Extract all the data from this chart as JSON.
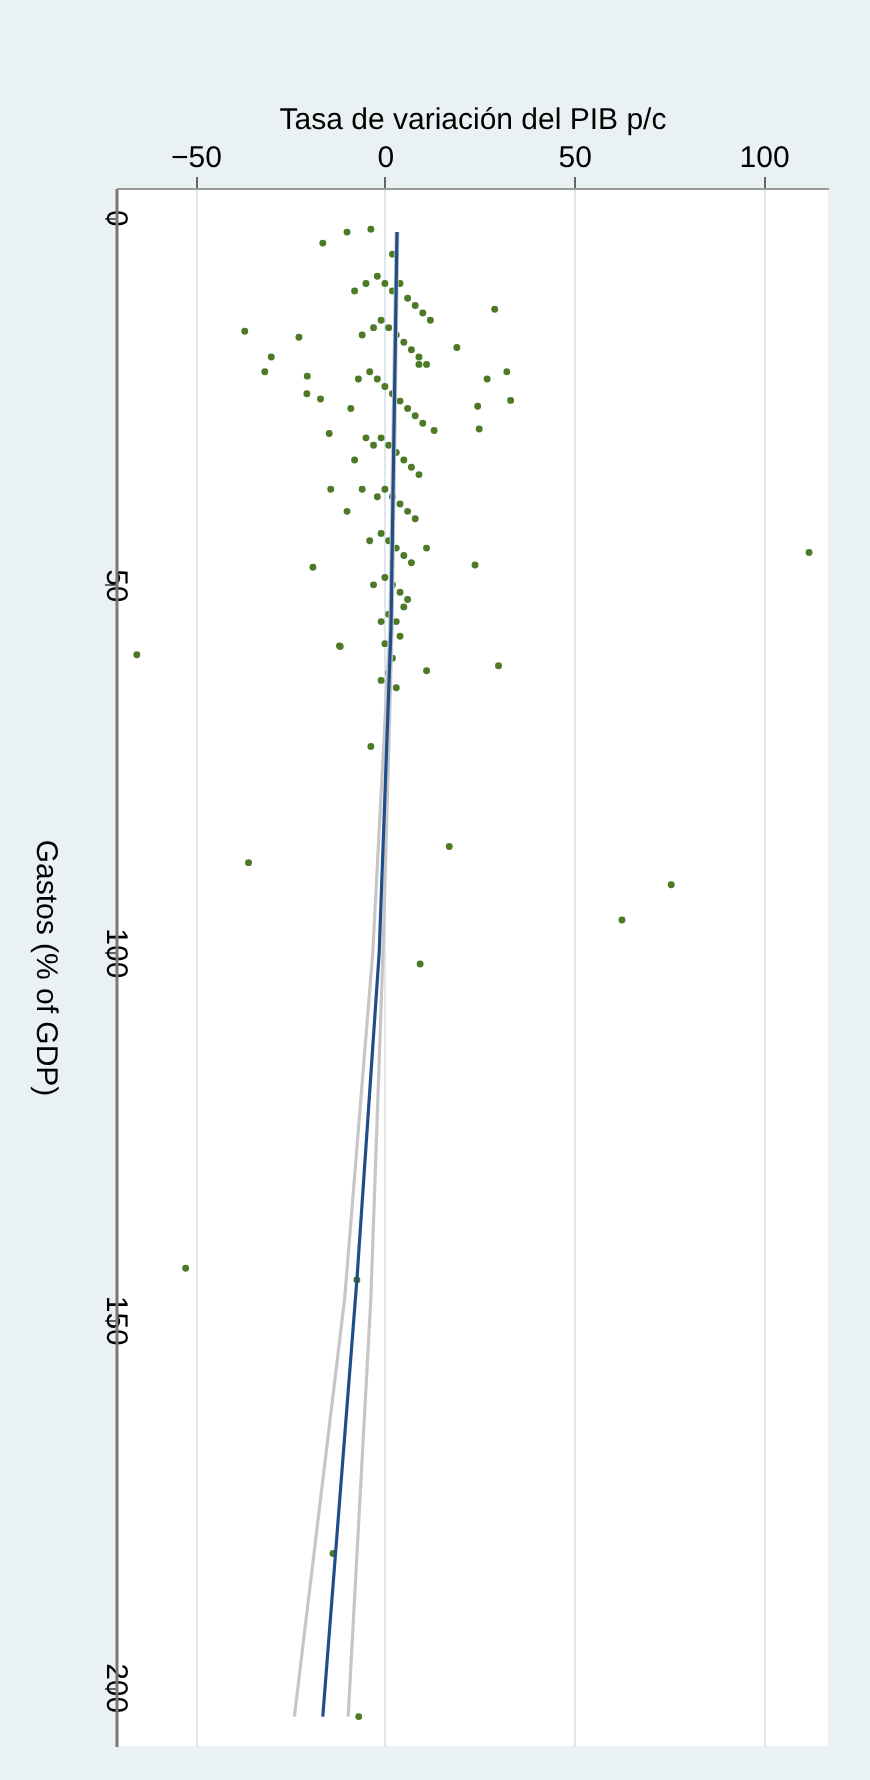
{
  "chart_data": {
    "type": "scatter",
    "xlabel": "Tasa de variación del PIB p/c",
    "ylabel": "Gastos (% of GDP)",
    "xlim": [
      -71,
      117
    ],
    "ylim": [
      208,
      -4
    ],
    "xticks": [
      -50,
      0,
      50,
      100
    ],
    "yticks": [
      0,
      50,
      100,
      150,
      200
    ],
    "grid": "x",
    "marker": "circle",
    "series": [
      {
        "color": "#4e7a27",
        "x": [
          112,
          -65.5,
          -36,
          17,
          75.6,
          62.6,
          9.3,
          -52.6,
          -7.4,
          -13.7,
          -6.9,
          30,
          11,
          -11.8,
          -3.7,
          29,
          -37,
          -30,
          -31.7,
          -22.7,
          -16.4,
          -10,
          -3.7,
          32.2,
          33.2,
          27,
          24.5,
          24.9,
          19,
          23.8,
          -19,
          -20.5,
          -20.6,
          -17,
          -14.7,
          -14.3,
          -12,
          -8,
          -5,
          -2,
          0,
          2,
          4,
          6,
          8,
          10,
          12,
          -6,
          -3,
          -1,
          1,
          3,
          5,
          7,
          9,
          11,
          -7,
          -4,
          -2,
          0,
          2,
          4,
          6,
          8,
          10,
          -5,
          -3,
          -1,
          1,
          3,
          5,
          7,
          9,
          -6,
          -2,
          0,
          2,
          4,
          6,
          8,
          -4,
          -1,
          1,
          3,
          5,
          7,
          -3,
          0,
          2,
          4,
          6,
          -1,
          1,
          3,
          -8,
          9,
          -10,
          13,
          -9,
          11,
          0,
          2,
          1,
          3,
          -1,
          4,
          5,
          2
        ],
        "values": [
          45.6,
          59.5,
          87.8,
          85.6,
          90.8,
          95.6,
          101.6,
          143,
          144.6,
          181.8,
          204,
          61,
          61.7,
          58.4,
          72,
          12.5,
          15.5,
          19,
          21,
          16.3,
          3.5,
          2,
          1.6,
          21,
          24.9,
          22,
          25.7,
          28.8,
          17.7,
          47.3,
          47.6,
          21.6,
          24,
          24.7,
          29.4,
          37,
          58.3,
          10,
          9,
          8,
          9,
          10,
          9,
          11,
          12,
          13,
          14,
          16,
          15,
          14,
          15,
          16,
          17,
          18,
          19,
          20,
          22,
          21,
          22,
          23,
          24,
          25,
          26,
          27,
          28,
          30,
          31,
          30,
          31,
          32,
          33,
          34,
          35,
          37,
          38,
          37,
          38,
          39,
          40,
          41,
          44,
          43,
          44,
          45,
          46,
          47,
          50,
          49,
          50,
          51,
          52,
          55,
          54,
          55,
          33,
          20,
          40,
          29,
          26,
          45,
          58,
          60,
          62,
          64,
          63,
          57,
          53,
          5
        ]
      },
      {
        "type": "line",
        "marker": "none",
        "color": "#c6c6c6",
        "x": [
          3.0,
          1.3,
          -3.2,
          -10.6,
          -23.9
        ],
        "values": [
          2,
          56,
          100,
          147,
          204
        ]
      },
      {
        "type": "line",
        "marker": "none",
        "color": "#c6c6c6",
        "x": [
          3.4,
          1.9,
          -0.5,
          -3.7,
          -9.7
        ],
        "values": [
          2,
          56,
          100,
          147,
          204
        ]
      },
      {
        "type": "line",
        "marker": "none",
        "color": "#1f4e89",
        "x": [
          3.2,
          1.6,
          -1.5,
          -7.4,
          -16.4
        ],
        "values": [
          2,
          56,
          100,
          144.6,
          204
        ]
      }
    ]
  }
}
